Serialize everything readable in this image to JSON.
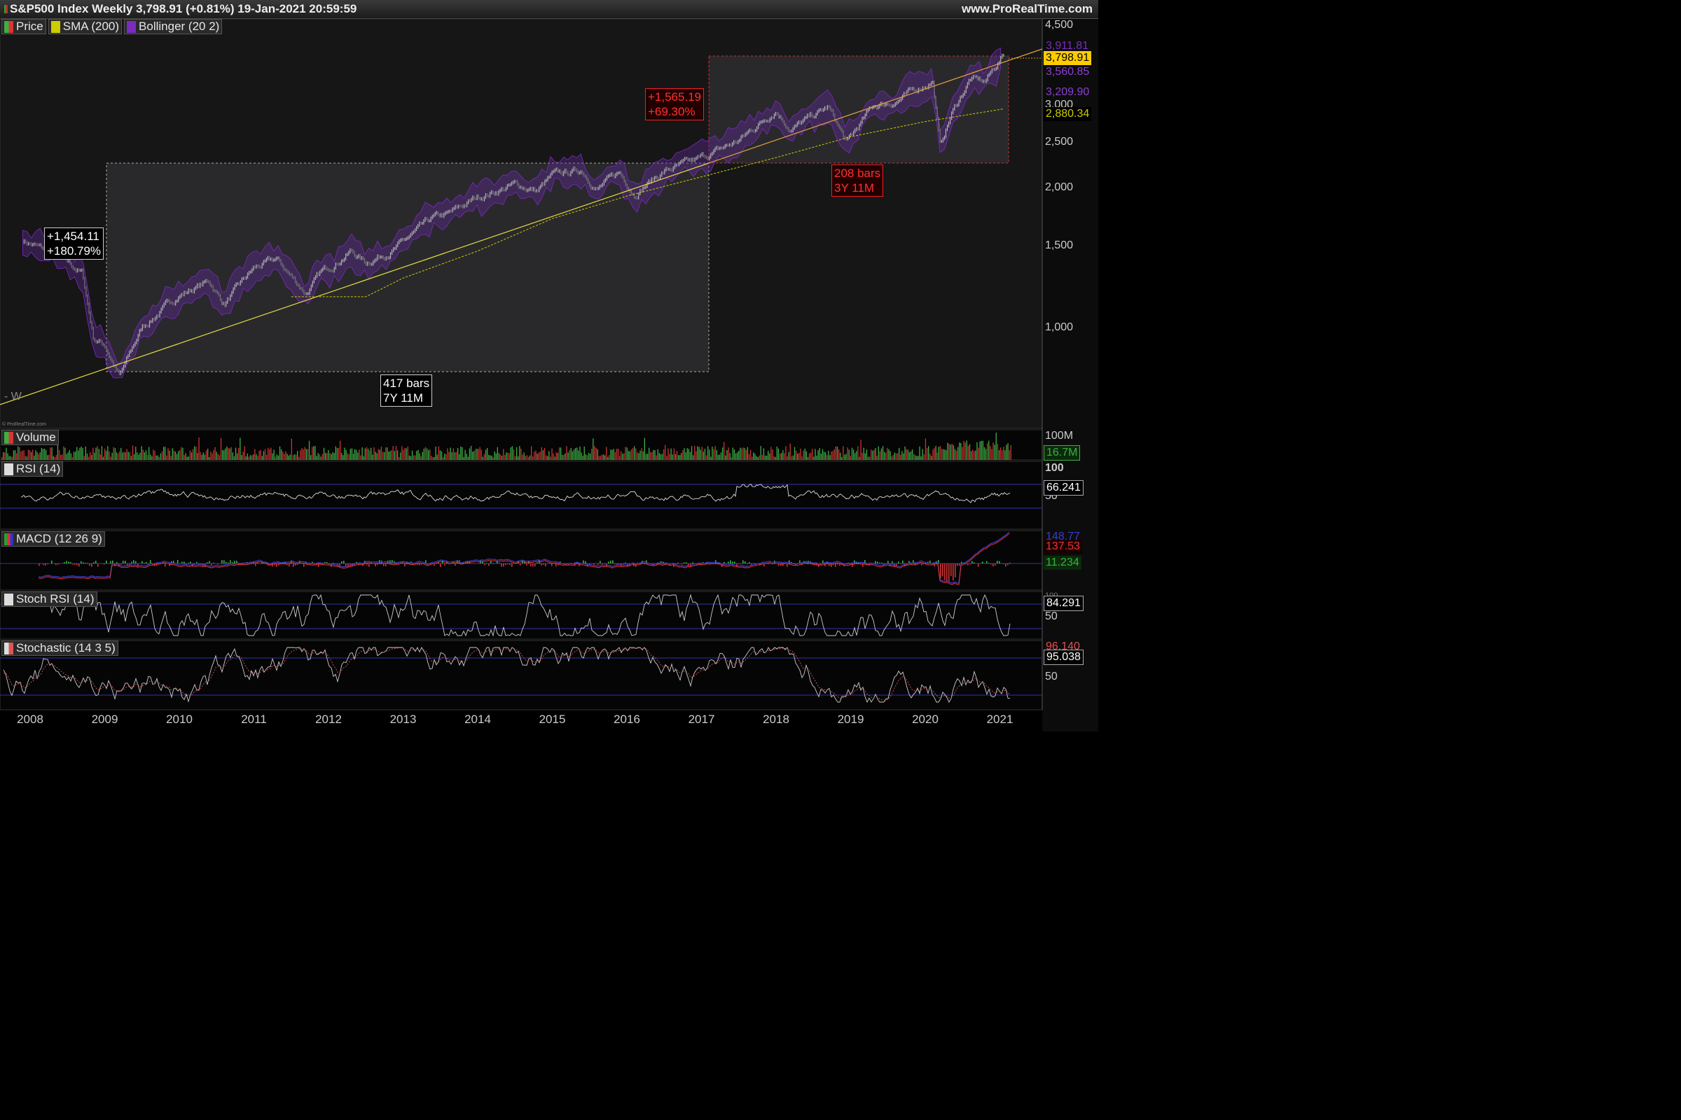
{
  "header": {
    "title": "S&P500 Index Weekly 3,798.91 (+0.81%) 19-Jan-2021 20:59:59",
    "site": "www.ProRealTime.com"
  },
  "watermark": "© ProRealTime.com",
  "period_mark": "- W",
  "legends": {
    "price": [
      {
        "label": "Price",
        "color": "#3cb043"
      },
      {
        "label": "SMA (200)",
        "color": "#cccc00"
      },
      {
        "label": "Bollinger (20 2)",
        "color": "#7b2bbf"
      }
    ],
    "volume": "Volume",
    "rsi": "RSI (14)",
    "macd": "MACD (12 26 9)",
    "stochrsi": "Stoch RSI (14)",
    "stoch": "Stochastic (14 3 5)"
  },
  "price_axis": {
    "ticks": [
      "4,500",
      "3,000",
      "2,500",
      "2,000",
      "1,500",
      "1,000"
    ],
    "tags": [
      {
        "text": "3,911.81",
        "color": "#7b2bbf",
        "fg": "#7b2bbf",
        "bg": "transparent"
      },
      {
        "text": "3,798.91",
        "color": "#ffcc00",
        "fg": "#000",
        "bg": "#ffcc00"
      },
      {
        "text": "3,560.85",
        "color": "#7b2bbf",
        "fg": "#7b2bbf",
        "bg": "transparent"
      },
      {
        "text": "3,209.90",
        "color": "#7b2bbf",
        "fg": "#7b2bbf",
        "bg": "transparent"
      },
      {
        "text": "2,880.34",
        "color": "#cccc00",
        "fg": "#cccc00",
        "bg": "#000"
      }
    ]
  },
  "volume_axis": {
    "tick": "100M",
    "tag": "16.7M"
  },
  "rsi_axis": {
    "ticks": [
      "100",
      "50"
    ],
    "tag": "66.241"
  },
  "macd_axis": {
    "tags": [
      "148.77",
      "137.53",
      "11.234"
    ]
  },
  "stochrsi_axis": {
    "ticks": [
      "50"
    ],
    "top": "100",
    "tag": "84.291"
  },
  "stoch_axis": {
    "ticks": [
      "50"
    ],
    "tags": [
      "96.140",
      "95.038"
    ]
  },
  "annotations": {
    "box1_change": "+1,454.11\n+180.79%",
    "box1_bars": "417 bars\n7Y 11M",
    "box2_change": "+1,565.19\n+69.30%",
    "box2_bars": "208 bars\n3Y 11M"
  },
  "chart_data": {
    "type": "line",
    "title": "S&P500 Index Weekly 3,798.91 (+0.81%) 19-Jan-2021 20:59:59",
    "x_ticks": [
      "2008",
      "2009",
      "2010",
      "2011",
      "2012",
      "2013",
      "2014",
      "2015",
      "2016",
      "2017",
      "2018",
      "2019",
      "2020",
      "2021"
    ],
    "y_scale": "log",
    "ylim": [
      600,
      4500
    ],
    "series": [
      {
        "name": "Price",
        "x": [
          2007.9,
          2008.3,
          2008.7,
          2008.85,
          2009.0,
          2009.2,
          2009.5,
          2010.0,
          2010.4,
          2010.6,
          2011.0,
          2011.3,
          2011.7,
          2011.9,
          2012.3,
          2012.5,
          2012.9,
          2013.4,
          2013.6,
          2014.0,
          2014.5,
          2014.8,
          2015.0,
          2015.4,
          2015.6,
          2015.9,
          2016.1,
          2016.5,
          2016.9,
          2017.5,
          2018.0,
          2018.2,
          2018.7,
          2018.95,
          2019.3,
          2019.6,
          2020.1,
          2020.2,
          2020.35,
          2020.6,
          2020.8,
          2021.05
        ],
        "values": [
          1480,
          1380,
          1250,
          900,
          870,
          740,
          950,
          1120,
          1200,
          1070,
          1280,
          1340,
          1130,
          1250,
          1400,
          1320,
          1420,
          1650,
          1680,
          1840,
          1960,
          1900,
          2050,
          2110,
          1920,
          2080,
          1880,
          2100,
          2200,
          2450,
          2870,
          2600,
          2900,
          2420,
          2920,
          2990,
          3330,
          2380,
          2800,
          3350,
          3300,
          3798.91
        ]
      },
      {
        "name": "SMA (200)",
        "x": [
          2011.5,
          2012.5,
          2013.0,
          2014.0,
          2015.0,
          2016.0,
          2017.0,
          2018.0,
          2019.0,
          2020.0,
          2021.05
        ],
        "values": [
          1110,
          1110,
          1220,
          1400,
          1650,
          1850,
          2040,
          2250,
          2500,
          2700,
          2880.34
        ]
      },
      {
        "name": "Bollinger (20 2)",
        "upper": 3911.81,
        "middle": 3560.85,
        "lower": 3209.9
      }
    ],
    "measures": [
      {
        "change": "+1,454.11",
        "percent": "+180.79%",
        "bars": "417 bars",
        "span": "7Y 11M"
      },
      {
        "change": "+1,565.19",
        "percent": "+69.30%",
        "bars": "208 bars",
        "span": "3Y 11M"
      }
    ],
    "indicators": {
      "volume": "16.7M",
      "rsi": 66.241,
      "macd": [
        148.77,
        137.53,
        11.234
      ],
      "stoch_rsi": 84.291,
      "stochastic": [
        96.14,
        95.038
      ]
    }
  }
}
